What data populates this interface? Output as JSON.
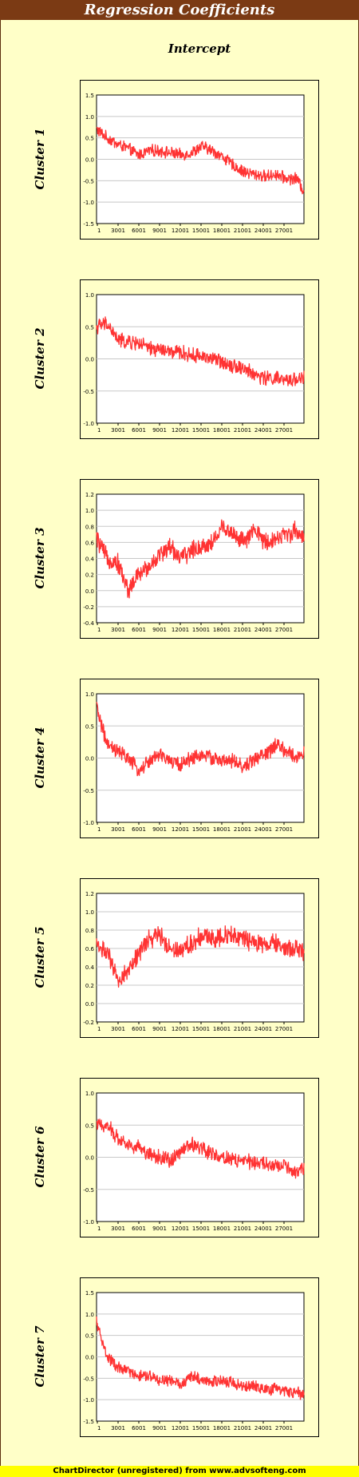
{
  "title": "Regression Coefficients",
  "column_header": "Intercept",
  "footer": "ChartDirector (unregistered) from www.advsofteng.com",
  "colors": {
    "background": "#FFFFC8",
    "title_bar": "#7B3A14",
    "series": "#FF3333",
    "grid": "#C8C8C8",
    "footer": "#FFFF00"
  },
  "x_tick_labels": [
    "1",
    "3001",
    "6001",
    "9001",
    "12001",
    "15001",
    "18001",
    "21001",
    "24001",
    "27001"
  ],
  "chart_data": [
    {
      "type": "line",
      "title": "Cluster 1",
      "series_color": "#FF3333",
      "xlim": [
        1,
        29500
      ],
      "ylim": [
        -1.5,
        1.5
      ],
      "y_ticks": [
        "1.5",
        "1.0",
        "0.5",
        "0.0",
        "-0.5",
        "-1.0",
        "-1.5"
      ],
      "x": [
        1,
        1500,
        3000,
        4500,
        6000,
        7500,
        9000,
        10500,
        12000,
        13500,
        15000,
        16500,
        18000,
        19500,
        21000,
        22500,
        24000,
        25500,
        27000,
        28500,
        29500
      ],
      "values": [
        0.7,
        0.5,
        0.35,
        0.25,
        0.1,
        0.2,
        0.2,
        0.15,
        0.1,
        0.15,
        0.3,
        0.2,
        0.05,
        -0.15,
        -0.3,
        -0.35,
        -0.4,
        -0.35,
        -0.45,
        -0.45,
        -0.75
      ],
      "noise": 0.12
    },
    {
      "type": "line",
      "title": "Cluster 2",
      "series_color": "#FF3333",
      "xlim": [
        1,
        29500
      ],
      "ylim": [
        -1.0,
        1.0
      ],
      "y_ticks": [
        "1.0",
        "0.5",
        "0.0",
        "-0.5",
        "-1.0"
      ],
      "x": [
        1,
        1500,
        3000,
        4500,
        6000,
        7500,
        9000,
        10500,
        12000,
        13500,
        15000,
        16500,
        18000,
        19500,
        21000,
        22500,
        24000,
        25500,
        27000,
        28500,
        29500
      ],
      "values": [
        0.5,
        0.55,
        0.3,
        0.25,
        0.25,
        0.15,
        0.15,
        0.1,
        0.1,
        0.05,
        0.05,
        0.0,
        -0.05,
        -0.1,
        -0.15,
        -0.25,
        -0.3,
        -0.3,
        -0.35,
        -0.3,
        -0.3
      ],
      "noise": 0.1
    },
    {
      "type": "line",
      "title": "Cluster 3",
      "series_color": "#FF3333",
      "xlim": [
        1,
        29500
      ],
      "ylim": [
        -0.4,
        1.2
      ],
      "y_ticks": [
        "1.2",
        "1.0",
        "0.8",
        "0.6",
        "0.4",
        "0.2",
        "0.0",
        "-0.2",
        "-0.4"
      ],
      "x": [
        1,
        1500,
        3000,
        4500,
        6000,
        7500,
        9000,
        10500,
        12000,
        13500,
        15000,
        16500,
        18000,
        19500,
        21000,
        22500,
        24000,
        25500,
        27000,
        28500,
        29500
      ],
      "values": [
        0.65,
        0.4,
        0.35,
        0.0,
        0.2,
        0.3,
        0.45,
        0.55,
        0.4,
        0.5,
        0.55,
        0.6,
        0.8,
        0.7,
        0.6,
        0.75,
        0.6,
        0.65,
        0.7,
        0.75,
        0.65
      ],
      "noise": 0.1
    },
    {
      "type": "line",
      "title": "Cluster 4",
      "series_color": "#FF3333",
      "xlim": [
        1,
        29500
      ],
      "ylim": [
        -1.0,
        1.0
      ],
      "y_ticks": [
        "1.0",
        "0.5",
        "0.0",
        "-0.5",
        "-1.0"
      ],
      "x": [
        1,
        1500,
        3000,
        4500,
        6000,
        7500,
        9000,
        10500,
        12000,
        13500,
        15000,
        16500,
        18000,
        19500,
        21000,
        22500,
        24000,
        25500,
        27000,
        28500,
        29500
      ],
      "values": [
        0.8,
        0.2,
        0.1,
        0.0,
        -0.2,
        -0.05,
        0.05,
        -0.05,
        -0.1,
        0.0,
        0.05,
        0.0,
        -0.05,
        -0.05,
        -0.15,
        0.0,
        0.05,
        0.2,
        0.1,
        0.0,
        0.1
      ],
      "noise": 0.1
    },
    {
      "type": "line",
      "title": "Cluster 5",
      "series_color": "#FF3333",
      "xlim": [
        1,
        29500
      ],
      "ylim": [
        -0.2,
        1.2
      ],
      "y_ticks": [
        "1.2",
        "1.0",
        "0.8",
        "0.6",
        "0.4",
        "0.2",
        "0.0",
        "-0.2"
      ],
      "x": [
        1,
        1500,
        3000,
        4500,
        6000,
        7500,
        9000,
        10500,
        12000,
        13500,
        15000,
        16500,
        18000,
        19500,
        21000,
        22500,
        24000,
        25500,
        27000,
        28500,
        29500
      ],
      "values": [
        0.65,
        0.55,
        0.25,
        0.35,
        0.55,
        0.7,
        0.75,
        0.6,
        0.6,
        0.65,
        0.75,
        0.7,
        0.75,
        0.75,
        0.7,
        0.65,
        0.65,
        0.65,
        0.6,
        0.6,
        0.55
      ],
      "noise": 0.09
    },
    {
      "type": "line",
      "title": "Cluster 6",
      "series_color": "#FF3333",
      "xlim": [
        1,
        29500
      ],
      "ylim": [
        -1.0,
        1.0
      ],
      "y_ticks": [
        "1.0",
        "0.5",
        "0.0",
        "-0.5",
        "-1.0"
      ],
      "x": [
        1,
        1500,
        3000,
        4500,
        6000,
        7500,
        9000,
        10500,
        12000,
        13500,
        15000,
        16500,
        18000,
        19500,
        21000,
        22500,
        24000,
        25500,
        27000,
        28500,
        29500
      ],
      "values": [
        0.5,
        0.5,
        0.3,
        0.2,
        0.15,
        0.05,
        0.0,
        -0.05,
        0.1,
        0.2,
        0.15,
        0.05,
        0.0,
        -0.05,
        -0.05,
        -0.1,
        -0.1,
        -0.15,
        -0.15,
        -0.25,
        -0.2
      ],
      "noise": 0.1
    },
    {
      "type": "line",
      "title": "Cluster 7",
      "series_color": "#FF3333",
      "xlim": [
        1,
        29500
      ],
      "ylim": [
        -1.5,
        1.5
      ],
      "y_ticks": [
        "1.5",
        "1.0",
        "0.5",
        "0.0",
        "-0.5",
        "-1.0",
        "-1.5"
      ],
      "x": [
        1,
        1500,
        3000,
        4500,
        6000,
        7500,
        9000,
        10500,
        12000,
        13500,
        15000,
        16500,
        18000,
        19500,
        21000,
        22500,
        24000,
        25500,
        27000,
        28500,
        29500
      ],
      "values": [
        0.8,
        0.0,
        -0.25,
        -0.35,
        -0.45,
        -0.45,
        -0.55,
        -0.55,
        -0.65,
        -0.45,
        -0.55,
        -0.6,
        -0.55,
        -0.6,
        -0.7,
        -0.7,
        -0.75,
        -0.75,
        -0.8,
        -0.85,
        -0.85
      ],
      "noise": 0.12
    }
  ]
}
